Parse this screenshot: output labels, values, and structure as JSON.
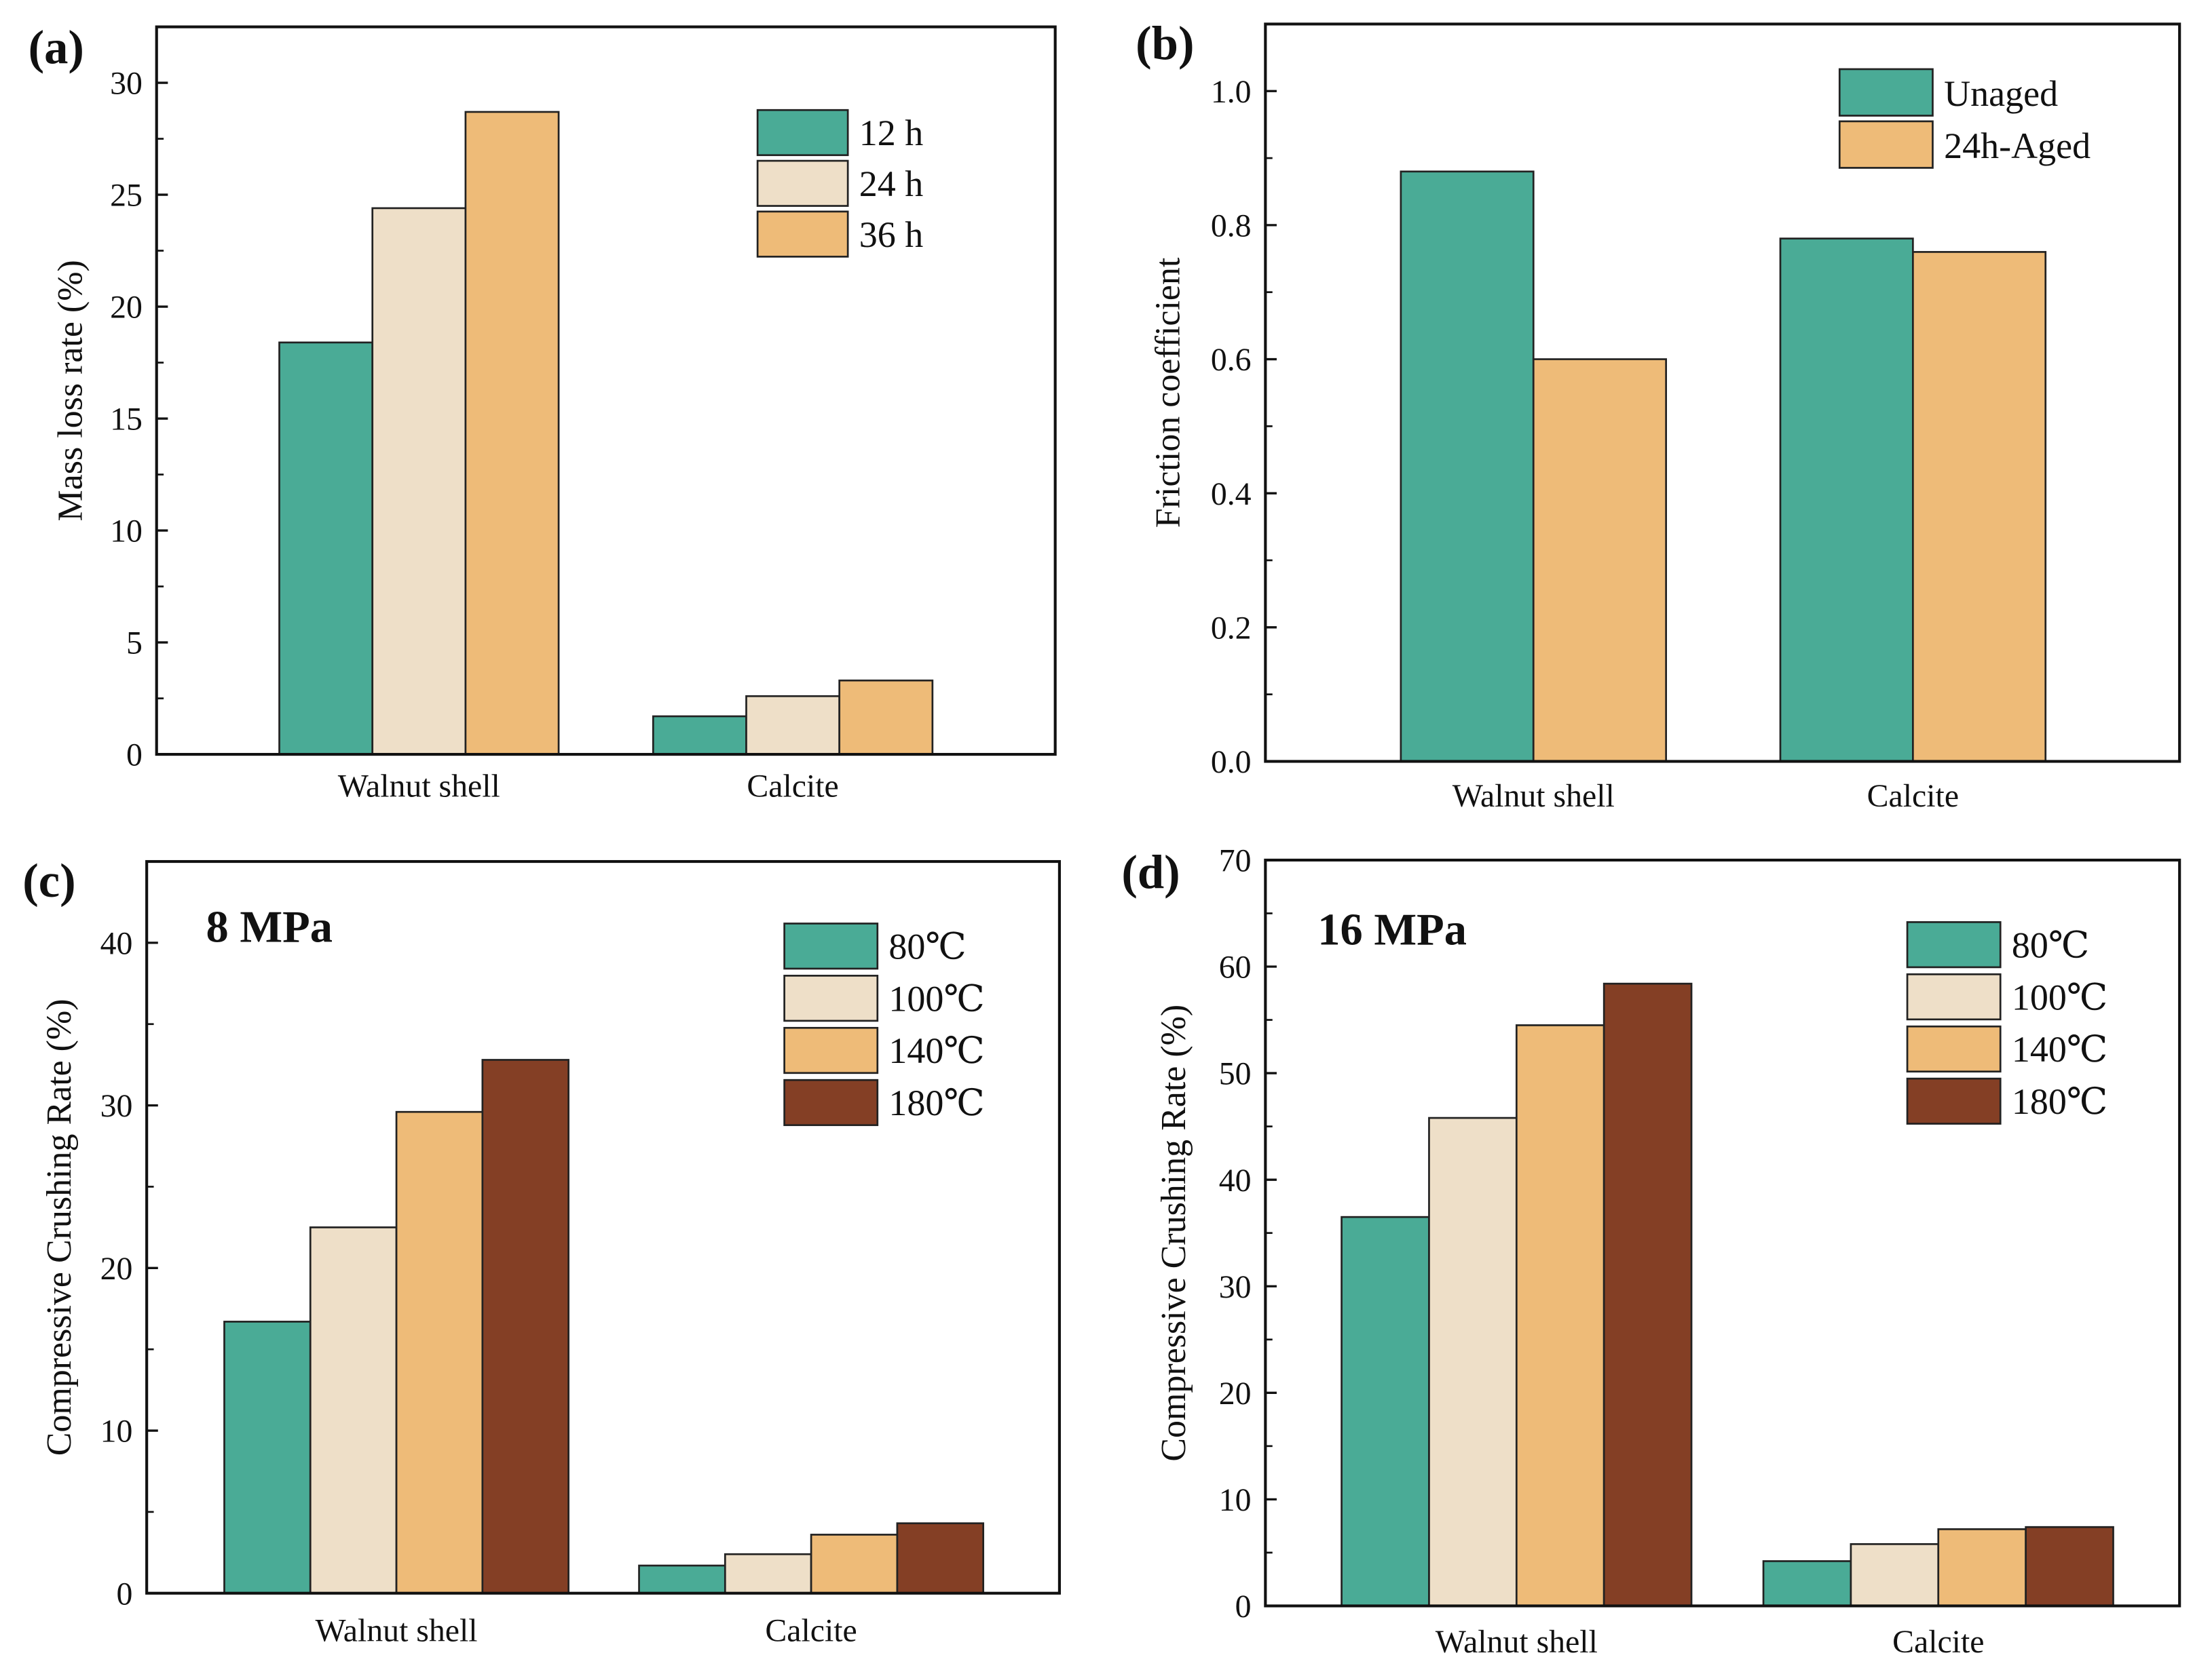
{
  "colors": {
    "teal": "#4aab96",
    "beige": "#eedfc8",
    "orange": "#eebb78",
    "brown": "#843f25"
  },
  "chart_data": [
    {
      "type": "bar",
      "panel_label": "(a)",
      "annotation": "",
      "categories": [
        "Walnut shell",
        "Calcite"
      ],
      "ylabel": "Mass loss rate (%)",
      "xlabel": "",
      "ylim": [
        0,
        32.5
      ],
      "yticks": [
        "0",
        "5",
        "10",
        "15",
        "20",
        "25",
        "30"
      ],
      "ytick_values": [
        0,
        5,
        10,
        15,
        20,
        25,
        30
      ],
      "legend_position": "top-right",
      "series": [
        {
          "name": "12 h",
          "color": "#4aab96",
          "values": [
            18.4,
            1.7
          ]
        },
        {
          "name": "24 h",
          "color": "#eedfc8",
          "values": [
            24.4,
            2.6
          ]
        },
        {
          "name": "36 h",
          "color": "#eebb78",
          "values": [
            28.7,
            3.3
          ]
        }
      ]
    },
    {
      "type": "bar",
      "panel_label": "(b)",
      "annotation": "",
      "categories": [
        "Walnut shell",
        "Calcite"
      ],
      "ylabel": "Friction coefficient",
      "xlabel": "",
      "ylim": [
        0,
        1.1
      ],
      "yticks": [
        "0.0",
        "0.2",
        "0.4",
        "0.6",
        "0.8",
        "1.0"
      ],
      "ytick_values": [
        0,
        0.2,
        0.4,
        0.6,
        0.8,
        1.0
      ],
      "legend_position": "top-right",
      "series": [
        {
          "name": "Unaged",
          "color": "#4aab96",
          "values": [
            0.88,
            0.78
          ]
        },
        {
          "name": "24h-Aged",
          "color": "#eebb78",
          "values": [
            0.6,
            0.76
          ]
        }
      ]
    },
    {
      "type": "bar",
      "panel_label": "(c)",
      "annotation": "8 MPa",
      "categories": [
        "Walnut shell",
        "Calcite"
      ],
      "ylabel": "Compressive Crushing Rate (%)",
      "xlabel": "",
      "ylim": [
        0,
        45
      ],
      "yticks": [
        "0",
        "10",
        "20",
        "30",
        "40"
      ],
      "ytick_values": [
        0,
        10,
        20,
        30,
        40
      ],
      "legend_position": "top-right",
      "series": [
        {
          "name": "80℃",
          "color": "#4aab96",
          "values": [
            16.7,
            1.7
          ]
        },
        {
          "name": "100℃",
          "color": "#eedfc8",
          "values": [
            22.5,
            2.4
          ]
        },
        {
          "name": "140℃",
          "color": "#eebb78",
          "values": [
            29.6,
            3.6
          ]
        },
        {
          "name": "180℃",
          "color": "#843f25",
          "values": [
            32.8,
            4.3
          ]
        }
      ]
    },
    {
      "type": "bar",
      "panel_label": "(d)",
      "annotation": "16 MPa",
      "categories": [
        "Walnut shell",
        "Calcite"
      ],
      "ylabel": "Compressive Crushing Rate (%)",
      "xlabel": "",
      "ylim": [
        0,
        70
      ],
      "yticks": [
        "0",
        "10",
        "20",
        "30",
        "40",
        "50",
        "60",
        "70"
      ],
      "ytick_values": [
        0,
        10,
        20,
        30,
        40,
        50,
        60,
        70
      ],
      "legend_position": "top-right",
      "series": [
        {
          "name": "80℃",
          "color": "#4aab96",
          "values": [
            36.5,
            4.2
          ]
        },
        {
          "name": "100℃",
          "color": "#eedfc8",
          "values": [
            45.8,
            5.8
          ]
        },
        {
          "name": "140℃",
          "color": "#eebb78",
          "values": [
            54.5,
            7.2
          ]
        },
        {
          "name": "180℃",
          "color": "#843f25",
          "values": [
            58.4,
            7.4
          ]
        }
      ]
    }
  ]
}
